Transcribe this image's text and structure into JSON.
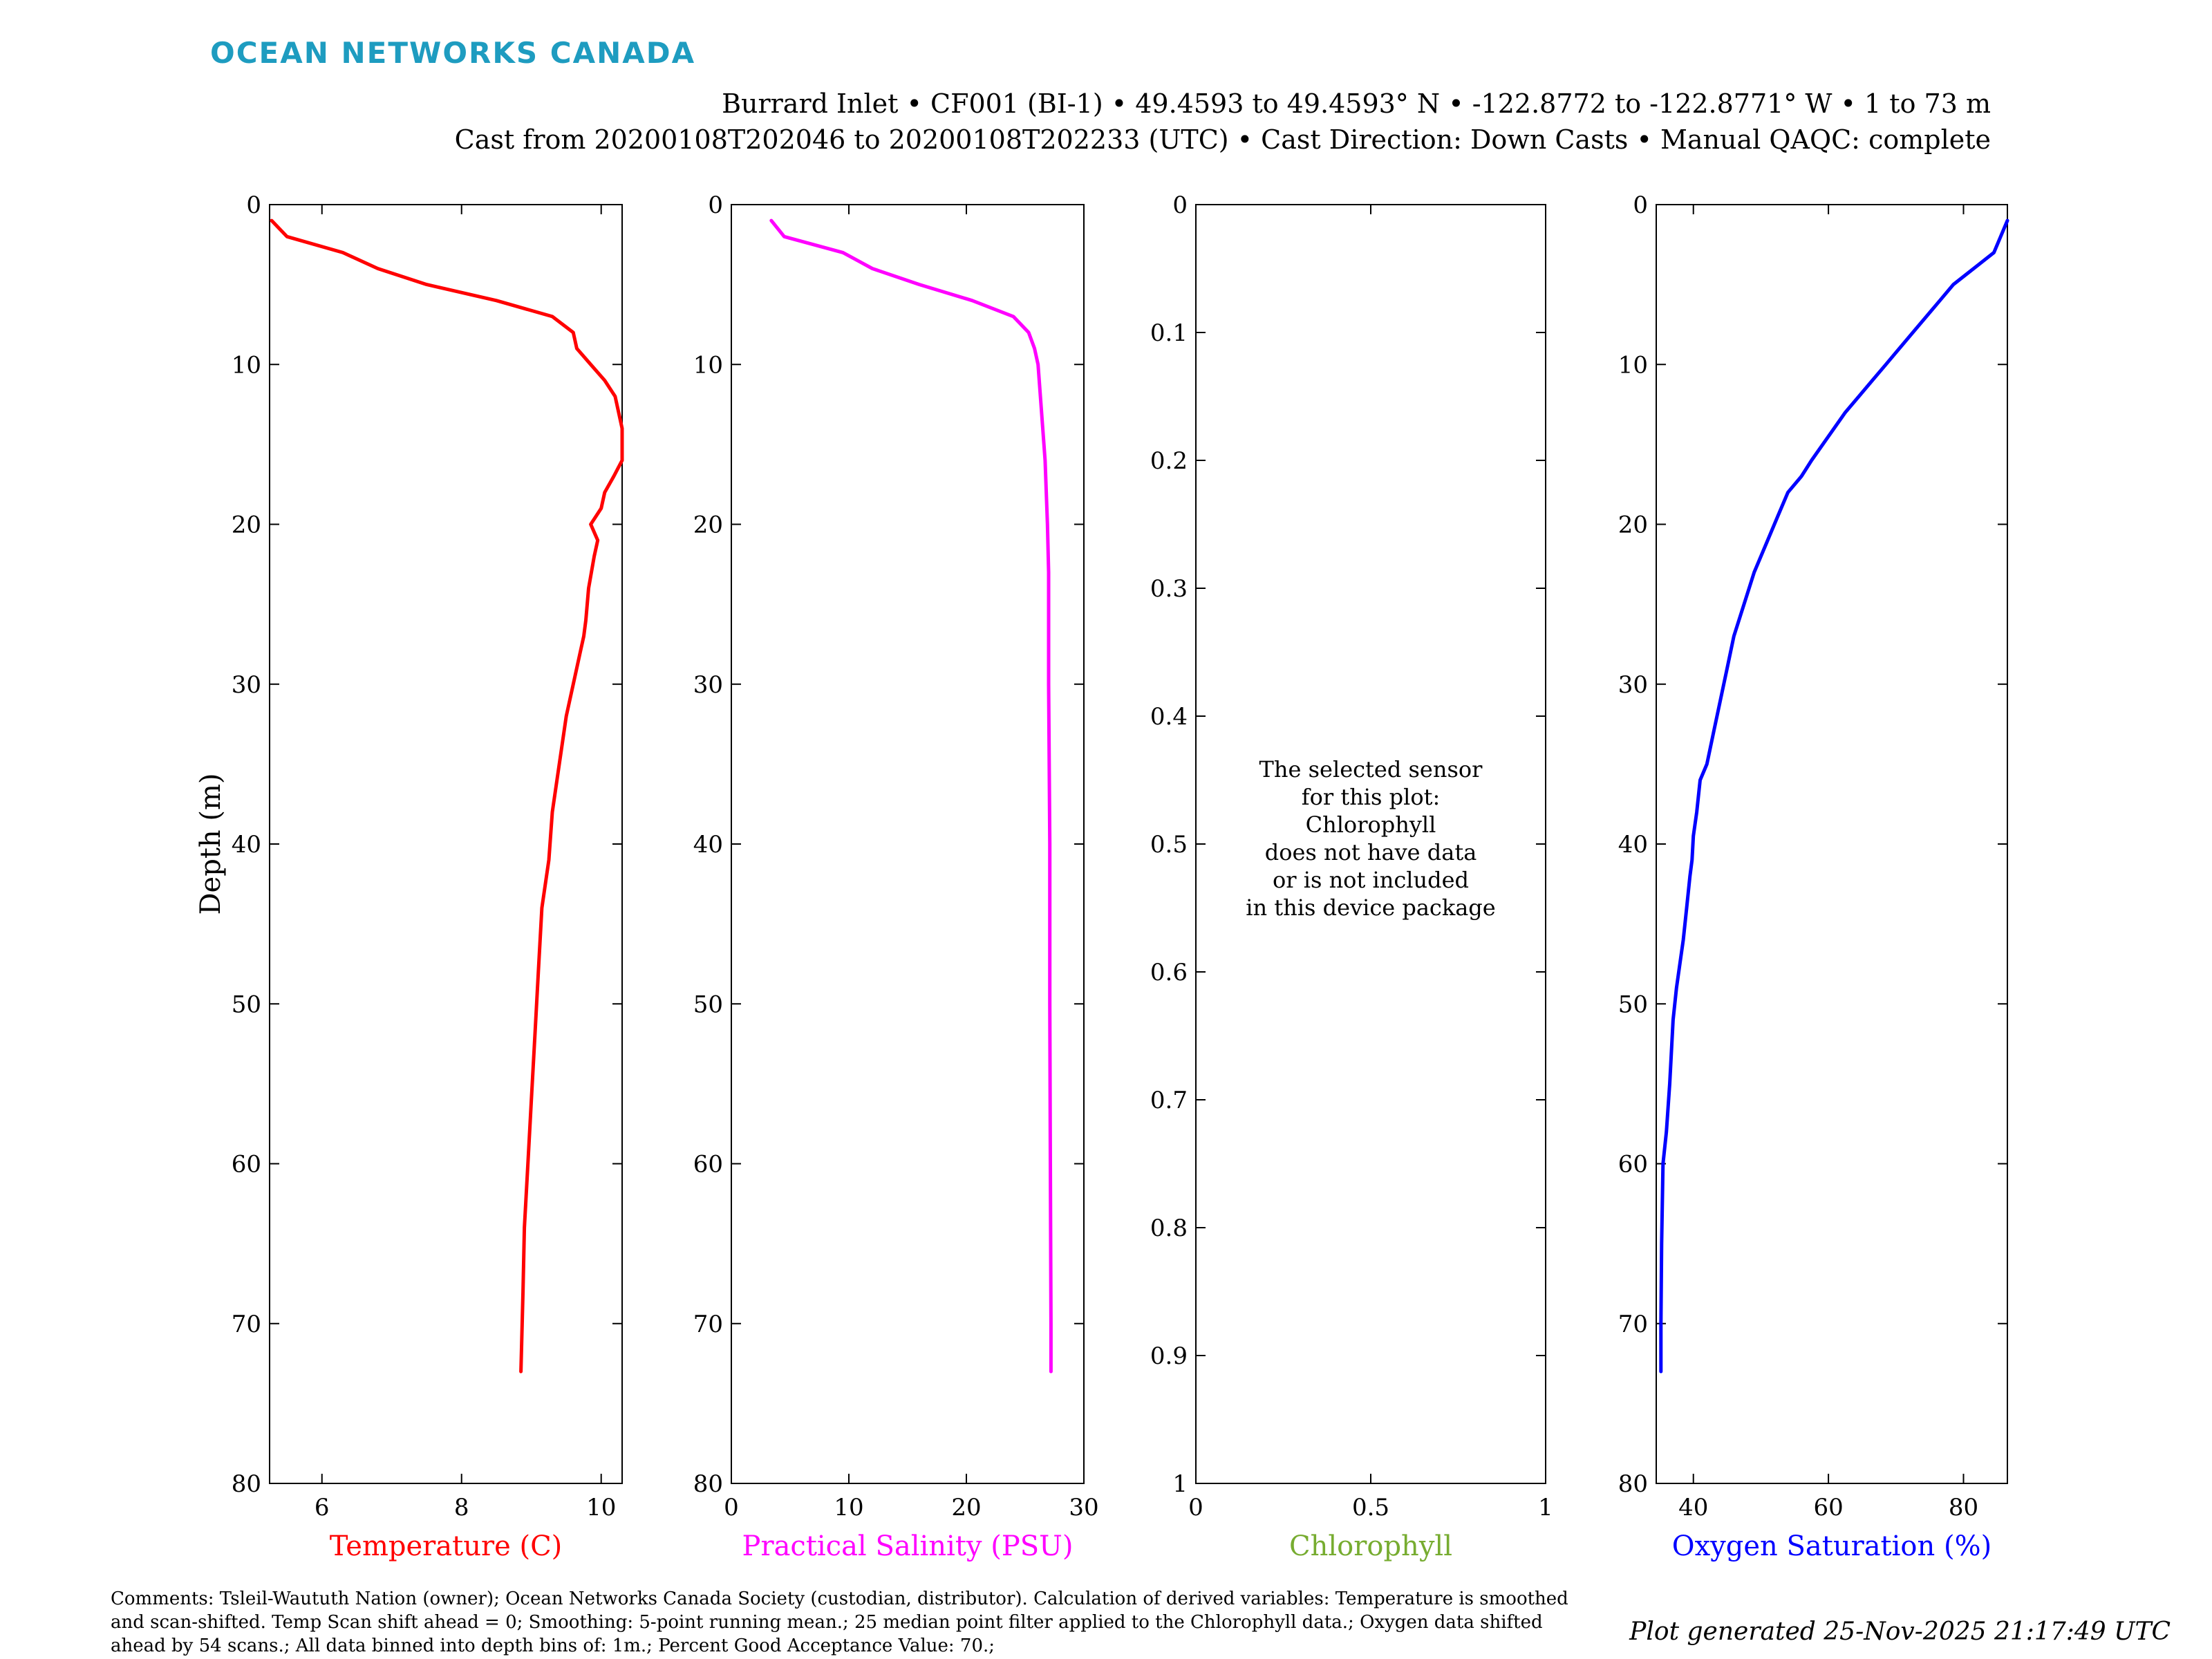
{
  "header": {
    "logo": "OCEAN NETWORKS CANADA",
    "line1": "Burrard Inlet • CF001 (BI-1) • 49.4593 to 49.4593° N • -122.8772 to -122.8771° W • 1 to 73 m",
    "line2": "Cast from 20200108T202046 to 20200108T202233 (UTC) • Cast Direction: Down Casts • Manual QAQC: complete"
  },
  "footer": {
    "comments": "Comments: Tsleil-Waututh Nation (owner); Ocean Networks Canada Society (custodian, distributor). Calculation of derived variables: Temperature is smoothed and scan-shifted. Temp Scan shift ahead = 0; Smoothing: 5-point running mean.; 25 median point filter applied to the Chlorophyll data.; Oxygen data shifted ahead by 54 scans.; All data binned into depth bins of: 1m.; Percent Good Acceptance Value: 70.;",
    "generated": "Plot generated 25-Nov-2025 21:17:49 UTC"
  },
  "chart_data": [
    {
      "type": "line",
      "xlabel": "Temperature (C)",
      "ylabel": "Depth (m)",
      "color": "#ff0000",
      "xlim": [
        5.25,
        10.3
      ],
      "ylim": [
        0,
        80
      ],
      "y_reversed": true,
      "xticks": [
        6,
        8,
        10
      ],
      "xtick_labels": [
        "6",
        "8",
        "10"
      ],
      "yticks": [
        0,
        10,
        20,
        30,
        40,
        50,
        60,
        70,
        80
      ],
      "ytick_labels": [
        "0",
        "10",
        "20",
        "30",
        "40",
        "50",
        "60",
        "70",
        "80"
      ],
      "series": [
        {
          "x": [
            5.28,
            5.5,
            6.3,
            6.8,
            7.5,
            8.5,
            9.3,
            9.6,
            9.65,
            9.85,
            10.05,
            10.2,
            10.3,
            10.3,
            10.18,
            10.05,
            10.0,
            9.85,
            9.95,
            9.9,
            9.82,
            9.78,
            9.75,
            9.7,
            9.6,
            9.5,
            9.4,
            9.3,
            9.25,
            9.15,
            9.1,
            9.05,
            9.0,
            8.95,
            8.9,
            8.88,
            8.85
          ],
          "y": [
            1,
            2,
            3,
            4,
            5,
            6,
            7,
            8,
            9,
            10,
            11,
            12,
            14,
            16,
            17,
            18,
            19,
            20,
            21,
            22,
            24,
            26,
            27,
            28,
            30,
            32,
            35,
            38,
            41,
            44,
            48,
            52,
            56,
            60,
            64,
            68,
            73
          ]
        }
      ]
    },
    {
      "type": "line",
      "xlabel": "Practical Salinity (PSU)",
      "color": "#ff00ff",
      "xlim": [
        0,
        30
      ],
      "ylim": [
        0,
        80
      ],
      "y_reversed": true,
      "xticks": [
        0,
        10,
        20,
        30
      ],
      "xtick_labels": [
        "0",
        "10",
        "20",
        "30"
      ],
      "yticks": [
        0,
        10,
        20,
        30,
        40,
        50,
        60,
        70,
        80
      ],
      "ytick_labels": [
        "0",
        "10",
        "20",
        "30",
        "40",
        "50",
        "60",
        "70",
        "80"
      ],
      "series": [
        {
          "x": [
            3.4,
            4.5,
            9.5,
            12.0,
            16.0,
            20.5,
            24.0,
            25.3,
            25.8,
            26.1,
            26.3,
            26.5,
            26.7,
            26.8,
            26.9,
            27.0,
            27.0,
            27.1,
            27.1,
            27.15,
            27.2,
            27.2
          ],
          "y": [
            1,
            2,
            3,
            4,
            5,
            6,
            7,
            8,
            9,
            10,
            12,
            14,
            16,
            18,
            20,
            23,
            30,
            40,
            50,
            60,
            70,
            73
          ]
        }
      ]
    },
    {
      "type": "line",
      "xlabel": "Chlorophyll",
      "color": "#77ac30",
      "xlim": [
        0,
        1
      ],
      "ylim": [
        0,
        1
      ],
      "y_reversed": true,
      "xticks": [
        0,
        0.5,
        1
      ],
      "xtick_labels": [
        "0",
        "0.5",
        "1"
      ],
      "yticks": [
        0,
        0.1,
        0.2,
        0.3,
        0.4,
        0.5,
        0.6,
        0.7,
        0.8,
        0.9,
        1
      ],
      "ytick_labels": [
        "0",
        "0.1",
        "0.2",
        "0.3",
        "0.4",
        "0.5",
        "0.6",
        "0.7",
        "0.8",
        "0.9",
        "1"
      ],
      "series": [],
      "message": [
        "The selected sensor",
        "for this plot:",
        "Chlorophyll",
        "does not have data",
        "or is not included",
        "in this device package"
      ]
    },
    {
      "type": "line",
      "xlabel": "Oxygen Saturation (%)",
      "color": "#0000ff",
      "xlim": [
        34.5,
        86.5
      ],
      "ylim": [
        0,
        80
      ],
      "y_reversed": true,
      "xticks": [
        40,
        60,
        80
      ],
      "xtick_labels": [
        "40",
        "60",
        "80"
      ],
      "yticks": [
        0,
        10,
        20,
        30,
        40,
        50,
        60,
        70,
        80
      ],
      "ytick_labels": [
        "0",
        "10",
        "20",
        "30",
        "40",
        "50",
        "60",
        "70",
        "80"
      ],
      "series": [
        {
          "x": [
            86.5,
            85.5,
            84.5,
            81.5,
            78.5,
            76.5,
            74.5,
            72.5,
            70.5,
            68.5,
            66.5,
            64.5,
            62.5,
            60.0,
            57.5,
            56.0,
            54.0,
            52.5,
            51.0,
            49.0,
            47.5,
            46.0,
            45.0,
            44.0,
            43.0,
            42.0,
            41.0,
            40.5,
            40.0,
            39.8,
            39.5,
            39.0,
            38.5,
            38.0,
            37.5,
            37.0,
            36.5,
            36.0,
            35.5,
            35.3,
            35.2,
            35.2
          ],
          "y": [
            1,
            2,
            3,
            4,
            5,
            6,
            7,
            8,
            9,
            10,
            11,
            12,
            13,
            14.5,
            16,
            17,
            18,
            19.5,
            21,
            23,
            25,
            27,
            29,
            31,
            33,
            35,
            36,
            38,
            39.5,
            41,
            42,
            44,
            46,
            47.5,
            49,
            51,
            55,
            58,
            60,
            65,
            70,
            73
          ]
        }
      ]
    }
  ]
}
